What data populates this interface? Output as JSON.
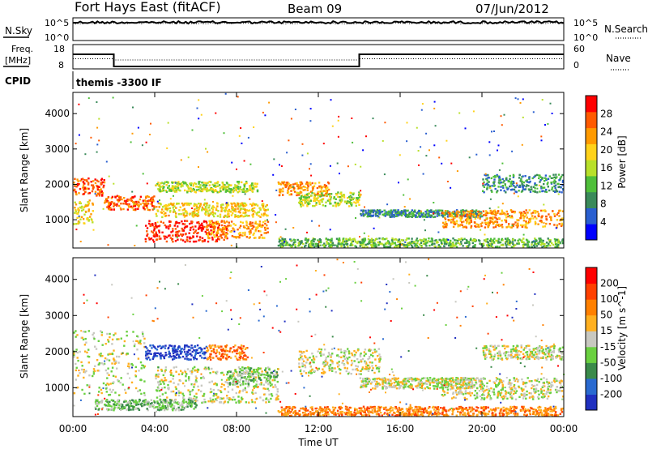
{
  "header": {
    "station": "Fort Hays East (fitACF)",
    "beam": "Beam 09",
    "date": "07/Jun/2012"
  },
  "top_panels": {
    "nsky_label": "N.Sky",
    "nsky_ticks": [
      "10^5",
      "10^0"
    ],
    "nsearch_label": "N.Search",
    "nsearch_ticks": [
      "10^5",
      "10^0"
    ],
    "freq_label_line1": "Freq.",
    "freq_label_line2": "[MHz]",
    "freq_ticks": [
      "18",
      "8"
    ],
    "nave_label": "Nave",
    "nave_ticks": [
      "60",
      "0"
    ],
    "cpid_label": "CPID",
    "cpid_text": "themis -3300 IF"
  },
  "power_scale": {
    "label": "Power [dB]",
    "ticks": [
      "28",
      "24",
      "20",
      "16",
      "12",
      "8",
      "4"
    ],
    "colors": [
      "#0000ff",
      "#2a5fd0",
      "#3a8a5a",
      "#4fbf3a",
      "#b8e02a",
      "#ffd21a",
      "#ff9a00",
      "#ff5a00",
      "#ff0000"
    ]
  },
  "velocity_scale": {
    "label": "Velocity [m s^-1]",
    "ticks": [
      "200",
      "100",
      "50",
      "15",
      "-15",
      "-50",
      "-100",
      "-200"
    ],
    "colors": [
      "#2030c0",
      "#2a6ad0",
      "#3a8a4a",
      "#6ad040",
      "#c8c8c0",
      "#ffb020",
      "#ff8000",
      "#ff4000",
      "#ff0000"
    ]
  },
  "axes": {
    "ylabel": "Slant Range [km]",
    "yticks": [
      "4000",
      "3000",
      "2000",
      "1000"
    ],
    "xlabel": "Time UT",
    "xticks": [
      "00:00",
      "04:00",
      "08:00",
      "12:00",
      "16:00",
      "20:00",
      "00:00"
    ]
  },
  "chart_data": [
    {
      "type": "line",
      "panel": "N.Sky / N.Search",
      "ylim_log10": [
        0,
        5
      ],
      "yscale": "log",
      "x_hours": [
        0,
        24
      ],
      "nsky_level_log10": 4.0,
      "nsearch_level_log10": 3.8
    },
    {
      "type": "line",
      "panel": "Freq. / Nave",
      "ylabel": "Freq. [MHz]",
      "ylim": [
        8,
        18
      ],
      "y2label": "Nave",
      "y2lim": [
        0,
        60
      ],
      "freq_segments": [
        {
          "x0": 0.0,
          "x1": 2.0,
          "value": 14.0
        },
        {
          "x0": 2.0,
          "x1": 14.0,
          "value": 9.0
        },
        {
          "x0": 14.0,
          "x1": 24.0,
          "value": 14.0
        }
      ],
      "nave_segments": [
        {
          "x0": 0.0,
          "x1": 2.0,
          "value": 25
        },
        {
          "x0": 2.0,
          "x1": 14.0,
          "value": 22
        },
        {
          "x0": 14.0,
          "x1": 24.0,
          "value": 25
        }
      ]
    },
    {
      "type": "heatmap",
      "panel": "Power",
      "xlabel": "Time UT",
      "ylabel": "Slant Range [km]",
      "xlim_hours": [
        0,
        24
      ],
      "ylim_km": [
        200,
        4600
      ],
      "colorbar_label": "Power [dB]",
      "colorbar_range": [
        0,
        30
      ],
      "features": [
        {
          "t0": 0.0,
          "t1": 1.5,
          "r0": 1700,
          "r1": 2200,
          "level": 7
        },
        {
          "t0": 0.0,
          "t1": 1.0,
          "r0": 900,
          "r1": 1600,
          "level": 5
        },
        {
          "t0": 1.5,
          "t1": 4.0,
          "r0": 1300,
          "r1": 1700,
          "level": 7
        },
        {
          "t0": 3.5,
          "t1": 7.5,
          "r0": 400,
          "r1": 1000,
          "level": 8
        },
        {
          "t0": 4.0,
          "t1": 9.5,
          "r0": 1100,
          "r1": 1500,
          "level": 5
        },
        {
          "t0": 4.0,
          "t1": 9.0,
          "r0": 1800,
          "r1": 2100,
          "level": 4
        },
        {
          "t0": 6.5,
          "t1": 9.5,
          "r0": 500,
          "r1": 1000,
          "level": 6
        },
        {
          "t0": 10.0,
          "t1": 12.5,
          "r0": 1700,
          "r1": 2100,
          "level": 6
        },
        {
          "t0": 11.0,
          "t1": 14.0,
          "r0": 1400,
          "r1": 1800,
          "level": 4
        },
        {
          "t0": 14.0,
          "t1": 20.0,
          "r0": 1100,
          "r1": 1300,
          "level": 2
        },
        {
          "t0": 18.0,
          "t1": 24.0,
          "r0": 800,
          "r1": 1300,
          "level": 6
        },
        {
          "t0": 20.0,
          "t1": 24.0,
          "r0": 1800,
          "r1": 2300,
          "level": 2
        },
        {
          "t0": 10.0,
          "t1": 24.0,
          "r0": 200,
          "r1": 500,
          "level": 3
        }
      ]
    },
    {
      "type": "heatmap",
      "panel": "Velocity",
      "xlabel": "Time UT",
      "ylabel": "Slant Range [km]",
      "xlim_hours": [
        0,
        24
      ],
      "ylim_km": [
        200,
        4600
      ],
      "colorbar_label": "Velocity [m s^-1]",
      "colorbar_range": [
        -250,
        250
      ],
      "features": [
        {
          "t0": 0.0,
          "t1": 3.5,
          "r0": 800,
          "r1": 2600,
          "level": 4
        },
        {
          "t0": 3.5,
          "t1": 6.5,
          "r0": 1800,
          "r1": 2200,
          "level": 0
        },
        {
          "t0": 6.5,
          "t1": 8.5,
          "r0": 1800,
          "r1": 2200,
          "level": 6
        },
        {
          "t0": 4.0,
          "t1": 10.0,
          "r0": 600,
          "r1": 1600,
          "level": 4
        },
        {
          "t0": 7.5,
          "t1": 10.0,
          "r0": 1100,
          "r1": 1600,
          "level": 3
        },
        {
          "t0": 1.0,
          "t1": 6.0,
          "r0": 400,
          "r1": 700,
          "level": 3
        },
        {
          "t0": 10.0,
          "t1": 24.0,
          "r0": 200,
          "r1": 500,
          "level": 6
        },
        {
          "t0": 11.0,
          "t1": 15.0,
          "r0": 1400,
          "r1": 2100,
          "level": 4
        },
        {
          "t0": 14.0,
          "t1": 20.0,
          "r0": 1000,
          "r1": 1300,
          "level": 4
        },
        {
          "t0": 18.0,
          "t1": 24.0,
          "r0": 700,
          "r1": 1300,
          "level": 4
        },
        {
          "t0": 20.0,
          "t1": 24.0,
          "r0": 1800,
          "r1": 2200,
          "level": 4
        }
      ]
    }
  ]
}
